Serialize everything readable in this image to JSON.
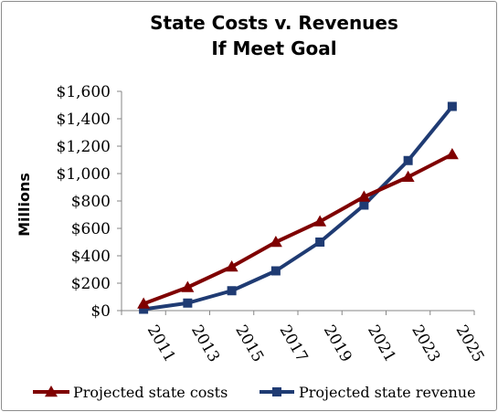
{
  "chart_data": {
    "type": "line",
    "title": "State Costs v. Revenues",
    "subtitle": "If Meet Goal",
    "ylabel": "Millions",
    "xlabel": "",
    "categories": [
      "2011",
      "2013",
      "2015",
      "2017",
      "2019",
      "2021",
      "2023",
      "2025"
    ],
    "ylim": [
      0,
      1600
    ],
    "yticks": [
      "$0",
      "$200",
      "$400",
      "$600",
      "$800",
      "$1,000",
      "$1,200",
      "$1,400",
      "$1,600"
    ],
    "grid": false,
    "legend_position": "bottom",
    "series": [
      {
        "name": "Projected state costs",
        "color": "#7f0000",
        "marker": "triangle",
        "values": [
          50,
          170,
          320,
          500,
          650,
          830,
          975,
          1140
        ]
      },
      {
        "name": "Projected state revenue",
        "color": "#1f3b73",
        "marker": "square",
        "values": [
          10,
          55,
          145,
          290,
          500,
          770,
          1095,
          1490
        ]
      }
    ]
  }
}
